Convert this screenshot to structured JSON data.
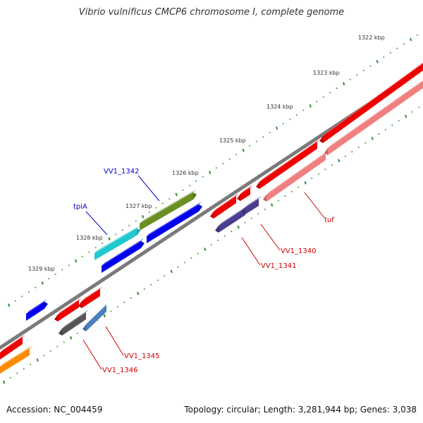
{
  "title": "Vibrio vulnificus CMCP6 chromosome I, complete genome",
  "footer": {
    "accession": "Accession: NC_004459",
    "summary": "Topology: circular; Length: 3,281,944 bp; Genes: 3,038"
  },
  "colors": {
    "backbone": "#808080",
    "tick": "#2e8b2e",
    "label_forward": "#0000cc",
    "label_reverse": "#cc0000"
  },
  "kbp_labels": [
    "1322 kbp",
    "1323 kbp",
    "1324 kbp",
    "1325 kbp",
    "1326 kbp",
    "1327 kbp",
    "1328 kbp",
    "1329 kbp"
  ],
  "genes": [
    {
      "label": "VV1_1342",
      "color": "#6b8e23"
    },
    {
      "label": "",
      "color": "#0000ee"
    },
    {
      "label": "tpiA",
      "color": "#20c8d0"
    },
    {
      "label": "",
      "color": "#0000ee"
    },
    {
      "label": "",
      "color": "#0000ee"
    },
    {
      "label": "",
      "color": "#ee0000"
    },
    {
      "label": "",
      "color": "#f08080"
    },
    {
      "label": "",
      "color": "#ee0000"
    },
    {
      "label": "tuf",
      "color": "#f08080"
    },
    {
      "label": "",
      "color": "#ee0000"
    },
    {
      "label": "",
      "color": "#ee0000"
    },
    {
      "label": "VV1_1341",
      "color": "#4b3d8f"
    },
    {
      "label": "VV1_1340",
      "color": "#4b3d8f"
    },
    {
      "label": "",
      "color": "#ee0000"
    },
    {
      "label": "",
      "color": "#ee0000"
    },
    {
      "label": "VV1_1346",
      "color": "#555555"
    },
    {
      "label": "VV1_1345",
      "color": "#4a7fc0"
    },
    {
      "label": "",
      "color": "#ee0000"
    },
    {
      "label": "",
      "color": "#ff8c00"
    }
  ]
}
